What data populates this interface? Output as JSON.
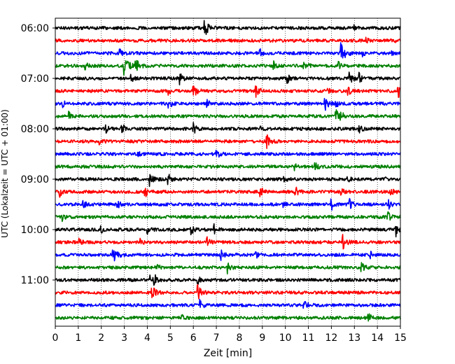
{
  "chart_data": {
    "type": "line",
    "title": "",
    "xlabel": "Zeit  [min]",
    "ylabel": "UTC (Lokalzeit = UTC + 01:00)",
    "xlim": [
      0,
      15
    ],
    "x_ticks": [
      "0",
      "1",
      "2",
      "3",
      "4",
      "5",
      "6",
      "7",
      "8",
      "9",
      "10",
      "11",
      "12",
      "13",
      "14",
      "15"
    ],
    "y_tick_labels": [
      "06:00",
      "07:00",
      "08:00",
      "09:00",
      "10:00",
      "11:00"
    ],
    "trace_interval_min": 15,
    "start_time": "06:00",
    "grid": "vertical dotted",
    "legend": "none",
    "color_cycle": [
      "#000000",
      "#ff0000",
      "#0000ff",
      "#008000"
    ],
    "traces": [
      {
        "time": "06:00",
        "color": "#000000",
        "events": [
          {
            "t": 6.5,
            "a": 1.2
          },
          {
            "t": 13.0,
            "a": 0.3
          }
        ]
      },
      {
        "time": "06:15",
        "color": "#ff0000",
        "events": [
          {
            "t": 13.5,
            "a": 0.4
          },
          {
            "t": 14.7,
            "a": 0.3
          }
        ]
      },
      {
        "time": "06:30",
        "color": "#0000ff",
        "events": [
          {
            "t": 2.8,
            "a": 0.8
          },
          {
            "t": 8.9,
            "a": 0.6
          },
          {
            "t": 12.4,
            "a": 1.6
          },
          {
            "t": 13.3,
            "a": 0.6
          },
          {
            "t": 14.6,
            "a": 0.4
          }
        ]
      },
      {
        "time": "06:45",
        "color": "#008000",
        "events": [
          {
            "t": 1.3,
            "a": 0.7
          },
          {
            "t": 3.0,
            "a": 1.5
          },
          {
            "t": 3.5,
            "a": 1.0
          },
          {
            "t": 9.5,
            "a": 0.6
          },
          {
            "t": 10.8,
            "a": 1.0
          },
          {
            "t": 12.3,
            "a": 0.6
          }
        ]
      },
      {
        "time": "07:00",
        "color": "#000000",
        "events": [
          {
            "t": 3.3,
            "a": 0.6
          },
          {
            "t": 5.4,
            "a": 0.8
          },
          {
            "t": 10.1,
            "a": 0.6
          },
          {
            "t": 12.8,
            "a": 0.8
          },
          {
            "t": 13.2,
            "a": 0.7
          }
        ]
      },
      {
        "time": "07:15",
        "color": "#ff0000",
        "events": [
          {
            "t": 4.9,
            "a": 0.6
          },
          {
            "t": 6.0,
            "a": 1.0
          },
          {
            "t": 8.7,
            "a": 1.0
          },
          {
            "t": 11.8,
            "a": 0.5
          },
          {
            "t": 12.7,
            "a": 0.8
          },
          {
            "t": 14.9,
            "a": 1.2
          }
        ]
      },
      {
        "time": "07:30",
        "color": "#0000ff",
        "events": [
          {
            "t": 0.3,
            "a": 0.6
          },
          {
            "t": 4.9,
            "a": 0.9
          },
          {
            "t": 6.6,
            "a": 0.6
          },
          {
            "t": 11.7,
            "a": 1.2
          },
          {
            "t": 12.2,
            "a": 0.5
          }
        ]
      },
      {
        "time": "07:45",
        "color": "#008000",
        "events": [
          {
            "t": 0.6,
            "a": 0.6
          },
          {
            "t": 12.2,
            "a": 0.9
          },
          {
            "t": 12.4,
            "a": 0.7
          }
        ]
      },
      {
        "time": "08:00",
        "color": "#000000",
        "events": [
          {
            "t": 2.2,
            "a": 0.6
          },
          {
            "t": 2.9,
            "a": 0.8
          },
          {
            "t": 6.0,
            "a": 0.8
          },
          {
            "t": 8.9,
            "a": 0.5
          },
          {
            "t": 13.2,
            "a": 0.7
          }
        ]
      },
      {
        "time": "08:15",
        "color": "#ff0000",
        "events": [
          {
            "t": 1.9,
            "a": 0.7
          },
          {
            "t": 9.2,
            "a": 0.9
          }
        ]
      },
      {
        "time": "08:30",
        "color": "#0000ff",
        "events": [
          {
            "t": 7.0,
            "a": 0.8
          },
          {
            "t": 3.6,
            "a": 0.3
          }
        ]
      },
      {
        "time": "08:45",
        "color": "#008000",
        "events": [
          {
            "t": 10.4,
            "a": 0.5
          },
          {
            "t": 11.3,
            "a": 0.6
          }
        ]
      },
      {
        "time": "09:00",
        "color": "#000000",
        "events": [
          {
            "t": 4.1,
            "a": 1.0
          },
          {
            "t": 4.9,
            "a": 0.8
          },
          {
            "t": 9.9,
            "a": 0.6
          },
          {
            "t": 12.7,
            "a": 0.5
          },
          {
            "t": 14.3,
            "a": 0.5
          }
        ]
      },
      {
        "time": "09:15",
        "color": "#ff0000",
        "events": [
          {
            "t": 0.2,
            "a": 0.8
          },
          {
            "t": 3.9,
            "a": 0.8
          },
          {
            "t": 8.9,
            "a": 0.8
          },
          {
            "t": 10.4,
            "a": 1.0
          },
          {
            "t": 12.4,
            "a": 0.7
          },
          {
            "t": 14.6,
            "a": 0.6
          }
        ]
      },
      {
        "time": "09:30",
        "color": "#0000ff",
        "events": [
          {
            "t": 1.2,
            "a": 0.6
          },
          {
            "t": 2.7,
            "a": 0.6
          },
          {
            "t": 9.9,
            "a": 0.6
          },
          {
            "t": 12.0,
            "a": 0.8
          },
          {
            "t": 12.8,
            "a": 0.7
          },
          {
            "t": 14.5,
            "a": 0.6
          }
        ]
      },
      {
        "time": "09:45",
        "color": "#008000",
        "events": [
          {
            "t": 0.3,
            "a": 0.5
          },
          {
            "t": 14.4,
            "a": 1.0
          }
        ]
      },
      {
        "time": "10:00",
        "color": "#000000",
        "events": [
          {
            "t": 2.0,
            "a": 0.5
          },
          {
            "t": 4.0,
            "a": 0.8
          },
          {
            "t": 5.9,
            "a": 0.7
          },
          {
            "t": 6.9,
            "a": 0.7
          },
          {
            "t": 14.8,
            "a": 1.0
          }
        ]
      },
      {
        "time": "10:15",
        "color": "#ff0000",
        "events": [
          {
            "t": 1.0,
            "a": 0.6
          },
          {
            "t": 3.7,
            "a": 0.6
          },
          {
            "t": 6.6,
            "a": 0.7
          },
          {
            "t": 12.5,
            "a": 1.0
          }
        ]
      },
      {
        "time": "10:30",
        "color": "#0000ff",
        "events": [
          {
            "t": 2.5,
            "a": 1.2
          },
          {
            "t": 7.2,
            "a": 0.7
          },
          {
            "t": 8.7,
            "a": 0.6
          },
          {
            "t": 13.7,
            "a": 0.5
          }
        ]
      },
      {
        "time": "10:45",
        "color": "#008000",
        "events": [
          {
            "t": 4.4,
            "a": 0.6
          },
          {
            "t": 7.5,
            "a": 0.8
          },
          {
            "t": 13.3,
            "a": 0.8
          }
        ]
      },
      {
        "time": "11:00",
        "color": "#000000",
        "events": [
          {
            "t": 4.1,
            "a": 0.8
          },
          {
            "t": 4.3,
            "a": 0.8
          },
          {
            "t": 6.2,
            "a": 0.5
          }
        ]
      },
      {
        "time": "11:15",
        "color": "#ff0000",
        "events": [
          {
            "t": 4.2,
            "a": 1.0
          },
          {
            "t": 6.2,
            "a": 1.0
          }
        ]
      },
      {
        "time": "11:30",
        "color": "#0000ff",
        "events": [
          {
            "t": 6.3,
            "a": 0.8
          },
          {
            "t": 10.8,
            "a": 1.0
          }
        ]
      },
      {
        "time": "11:45",
        "color": "#008000",
        "events": [
          {
            "t": 5.5,
            "a": 0.4
          },
          {
            "t": 13.6,
            "a": 0.8
          }
        ]
      }
    ]
  }
}
